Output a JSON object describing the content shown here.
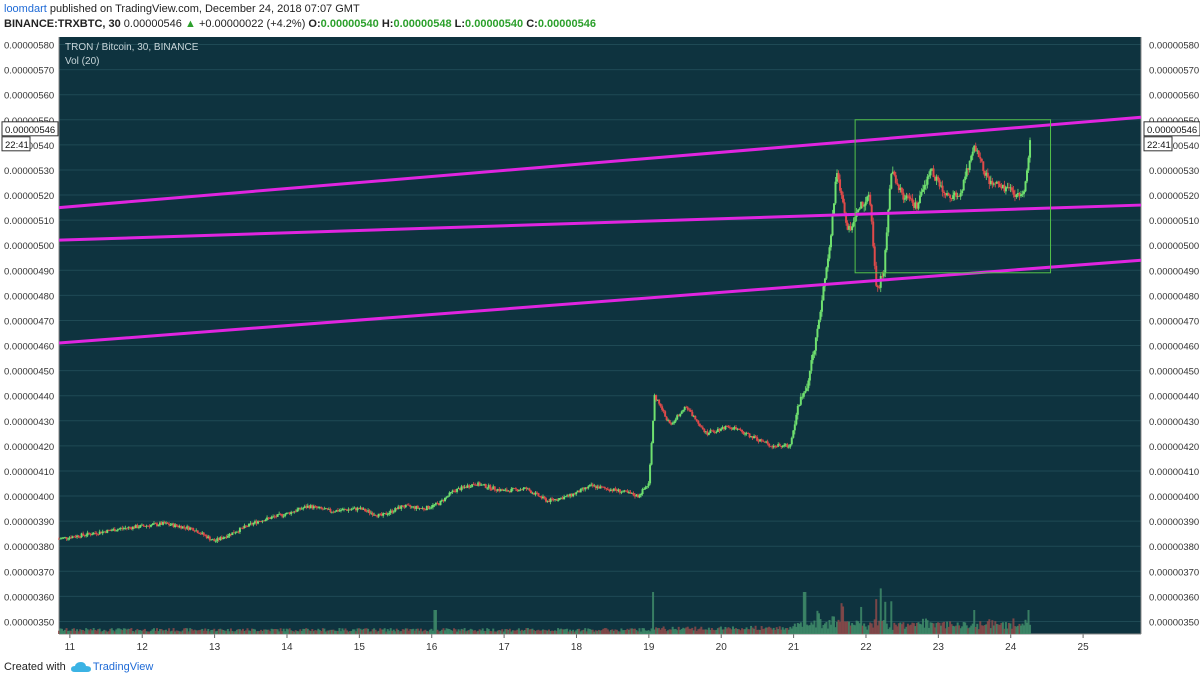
{
  "header": {
    "author": "loomdart",
    "published_text": "published on TradingView.com, December 24, 2018 07:07 GMT",
    "symbol": "BINANCE:TRXBTC, 30",
    "last": "0.00000546",
    "change_arrow": "▲",
    "change": "+0.00000022 (+4.2%)",
    "o_label": "O:",
    "o_value": "0.00000540",
    "h_label": "H:",
    "h_value": "0.00000548",
    "l_label": "L:",
    "l_value": "0.00000540",
    "c_label": "C:",
    "c_value": "0.00000546"
  },
  "chart_data": {
    "type": "candlestick",
    "title": "TRON / Bitcoin, 30, BINANCE",
    "indicator": "Vol (20)",
    "y_ticks": [
      "0.00000580",
      "0.00000570",
      "0.00000560",
      "0.00000550",
      "0.00000540",
      "0.00000530",
      "0.00000520",
      "0.00000510",
      "0.00000500",
      "0.00000490",
      "0.00000480",
      "0.00000470",
      "0.00000460",
      "0.00000450",
      "0.00000440",
      "0.00000430",
      "0.00000420",
      "0.00000410",
      "0.00000400",
      "0.00000390",
      "0.00000380",
      "0.00000370",
      "0.00000360",
      "0.00000350"
    ],
    "ylim": [
      3.45e-06,
      5.83e-06
    ],
    "x_ticks": [
      "11",
      "12",
      "13",
      "14",
      "15",
      "16",
      "17",
      "18",
      "19",
      "20",
      "21",
      "22",
      "23",
      "24",
      "25"
    ],
    "xlim": [
      10.85,
      25.8
    ],
    "price_label": "0.00000546",
    "time_label": "22:41",
    "price_path": [
      [
        10.85,
        3.83e-06
      ],
      [
        11.3,
        3.85e-06
      ],
      [
        11.7,
        3.87e-06
      ],
      [
        12.0,
        3.88e-06
      ],
      [
        12.3,
        3.89e-06
      ],
      [
        12.7,
        3.87e-06
      ],
      [
        13.0,
        3.82e-06
      ],
      [
        13.3,
        3.86e-06
      ],
      [
        13.6,
        3.9e-06
      ],
      [
        14.0,
        3.93e-06
      ],
      [
        14.3,
        3.96e-06
      ],
      [
        14.6,
        3.94e-06
      ],
      [
        15.0,
        3.95e-06
      ],
      [
        15.3,
        3.92e-06
      ],
      [
        15.6,
        3.96e-06
      ],
      [
        15.9,
        3.95e-06
      ],
      [
        16.1,
        3.97e-06
      ],
      [
        16.3,
        4.02e-06
      ],
      [
        16.6,
        4.05e-06
      ],
      [
        17.0,
        4.02e-06
      ],
      [
        17.3,
        4.03e-06
      ],
      [
        17.6,
        3.98e-06
      ],
      [
        17.9,
        4e-06
      ],
      [
        18.2,
        4.04e-06
      ],
      [
        18.6,
        4.02e-06
      ],
      [
        18.85,
        4e-06
      ],
      [
        19.0,
        4.05e-06
      ],
      [
        19.08,
        4.4e-06
      ],
      [
        19.3,
        4.28e-06
      ],
      [
        19.5,
        4.36e-06
      ],
      [
        19.8,
        4.25e-06
      ],
      [
        20.1,
        4.28e-06
      ],
      [
        20.4,
        4.24e-06
      ],
      [
        20.7,
        4.2e-06
      ],
      [
        20.95,
        4.2e-06
      ],
      [
        21.05,
        4.35e-06
      ],
      [
        21.2,
        4.45e-06
      ],
      [
        21.35,
        4.7e-06
      ],
      [
        21.5,
        5e-06
      ],
      [
        21.6,
        5.3e-06
      ],
      [
        21.75,
        5.05e-06
      ],
      [
        21.9,
        5.15e-06
      ],
      [
        22.05,
        5.2e-06
      ],
      [
        22.15,
        4.82e-06
      ],
      [
        22.25,
        4.9e-06
      ],
      [
        22.35,
        5.3e-06
      ],
      [
        22.5,
        5.2e-06
      ],
      [
        22.7,
        5.15e-06
      ],
      [
        22.9,
        5.3e-06
      ],
      [
        23.1,
        5.2e-06
      ],
      [
        23.3,
        5.2e-06
      ],
      [
        23.5,
        5.4e-06
      ],
      [
        23.7,
        5.25e-06
      ],
      [
        23.9,
        5.23e-06
      ],
      [
        24.1,
        5.2e-06
      ],
      [
        24.2,
        5.23e-06
      ],
      [
        24.28,
        5.46e-06
      ]
    ],
    "volume_spikes": [
      {
        "x": 16.05,
        "v": 0.2
      },
      {
        "x": 19.05,
        "v": 0.35
      },
      {
        "x": 21.15,
        "v": 0.35
      },
      {
        "x": 21.55,
        "v": 0.65
      },
      {
        "x": 21.7,
        "v": 0.45
      },
      {
        "x": 22.2,
        "v": 0.38
      },
      {
        "x": 23.5,
        "v": 0.2
      },
      {
        "x": 24.25,
        "v": 0.2
      }
    ],
    "trend_lines": [
      {
        "name": "upper",
        "x1": 10.85,
        "y1": 5.15e-06,
        "x2": 25.8,
        "y2": 5.51e-06,
        "color": "#e025e0"
      },
      {
        "name": "middle",
        "x1": 10.85,
        "y1": 5.02e-06,
        "x2": 25.8,
        "y2": 5.16e-06,
        "color": "#e025e0"
      },
      {
        "name": "lower",
        "x1": 10.85,
        "y1": 4.61e-06,
        "x2": 25.8,
        "y2": 4.94e-06,
        "color": "#e025e0"
      }
    ],
    "range_box": {
      "x1": 21.85,
      "x2": 24.55,
      "y1": 4.89e-06,
      "y2": 5.5e-06,
      "color": "#54c24a"
    },
    "colors": {
      "background": "#0e333f",
      "up": "#6fe06f",
      "down": "#e04a4a",
      "grid": "#1f4a55",
      "text": "#222222",
      "axis_text": "#333333"
    }
  },
  "footer": {
    "created_with": "Created with",
    "brand": "TradingView"
  }
}
